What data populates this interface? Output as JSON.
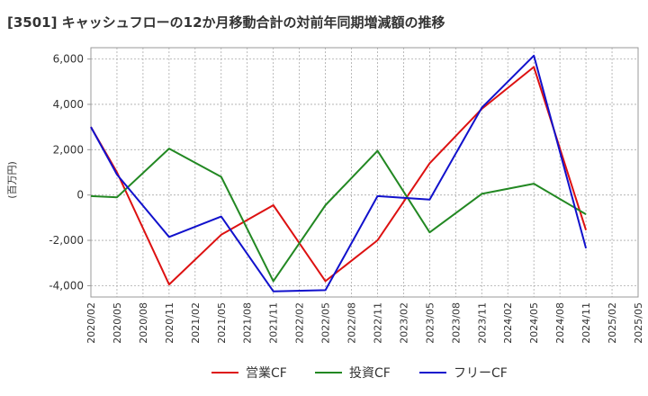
{
  "chart_data": {
    "type": "line",
    "title": "[3501]  キャッシュフローの12か月移動合計の対前年同期増減額の推移",
    "ylabel": "(百万円)",
    "xlabel": "",
    "ylim": [
      -4500,
      6500
    ],
    "yticks": [
      -4000,
      -2000,
      0,
      2000,
      4000,
      6000
    ],
    "ytick_labels": [
      "-4,000",
      "-2,000",
      "0",
      "2,000",
      "4,000",
      "6,000"
    ],
    "x_categories": [
      "2020/02",
      "2020/05",
      "2020/08",
      "2020/11",
      "2021/02",
      "2021/05",
      "2021/08",
      "2021/11",
      "2022/02",
      "2022/05",
      "2022/08",
      "2022/11",
      "2023/02",
      "2023/05",
      "2023/08",
      "2023/11",
      "2024/02",
      "2024/05",
      "2024/08",
      "2024/11",
      "2025/02",
      "2025/05"
    ],
    "grid": true,
    "legend_position": "bottom",
    "series": [
      {
        "name": "営業CF",
        "color": "#dd1111",
        "x": [
          "2020/02",
          "2020/05",
          "2020/11",
          "2021/05",
          "2021/11",
          "2022/05",
          "2022/11",
          "2023/05",
          "2023/11",
          "2024/05",
          "2024/11"
        ],
        "y": [
          3000,
          1000,
          -3950,
          -1750,
          -450,
          -3800,
          -2000,
          1400,
          3800,
          5650,
          -1550
        ]
      },
      {
        "name": "投資CF",
        "color": "#228822",
        "x": [
          "2020/02",
          "2020/05",
          "2020/11",
          "2021/05",
          "2021/11",
          "2022/05",
          "2022/11",
          "2023/05",
          "2023/11",
          "2024/05",
          "2024/11"
        ],
        "y": [
          -50,
          -100,
          2050,
          800,
          -3800,
          -450,
          1950,
          -1650,
          50,
          500,
          -850
        ]
      },
      {
        "name": "フリーCF",
        "color": "#1111cc",
        "x": [
          "2020/02",
          "2020/05",
          "2020/11",
          "2021/05",
          "2021/11",
          "2022/05",
          "2022/11",
          "2023/05",
          "2023/11",
          "2024/05",
          "2024/11"
        ],
        "y": [
          3000,
          900,
          -1850,
          -950,
          -4250,
          -4200,
          -50,
          -200,
          3850,
          6150,
          -2350
        ]
      }
    ]
  }
}
